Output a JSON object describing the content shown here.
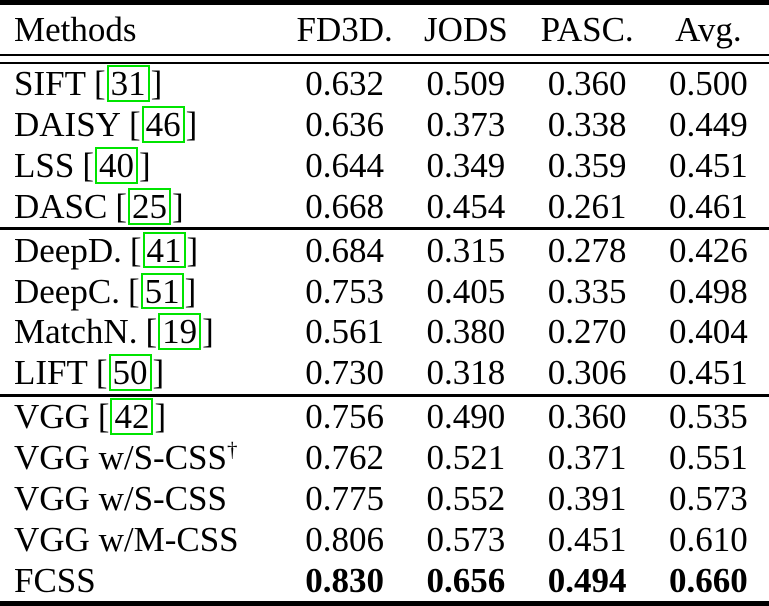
{
  "colors": {
    "background": "#ffffff",
    "text": "#000000",
    "rule": "#000000",
    "citation_box_border": "#00e400"
  },
  "table": {
    "cite_open": "[",
    "cite_close": "]",
    "columns": [
      "Methods",
      "FD3D.",
      "JODS",
      "PASC.",
      "Avg."
    ],
    "groups": [
      [
        {
          "method": "SIFT",
          "cite": "31",
          "values": [
            "0.632",
            "0.509",
            "0.360",
            "0.500"
          ]
        },
        {
          "method": "DAISY",
          "cite": "46",
          "values": [
            "0.636",
            "0.373",
            "0.338",
            "0.449"
          ]
        },
        {
          "method": "LSS",
          "cite": "40",
          "values": [
            "0.644",
            "0.349",
            "0.359",
            "0.451"
          ]
        },
        {
          "method": "DASC",
          "cite": "25",
          "values": [
            "0.668",
            "0.454",
            "0.261",
            "0.461"
          ]
        }
      ],
      [
        {
          "method": "DeepD.",
          "cite": "41",
          "values": [
            "0.684",
            "0.315",
            "0.278",
            "0.426"
          ]
        },
        {
          "method": "DeepC.",
          "cite": "51",
          "values": [
            "0.753",
            "0.405",
            "0.335",
            "0.498"
          ]
        },
        {
          "method": "MatchN.",
          "cite": "19",
          "values": [
            "0.561",
            "0.380",
            "0.270",
            "0.404"
          ]
        },
        {
          "method": "LIFT",
          "cite": "50",
          "values": [
            "0.730",
            "0.318",
            "0.306",
            "0.451"
          ]
        }
      ],
      [
        {
          "method": "VGG",
          "cite": "42",
          "values": [
            "0.756",
            "0.490",
            "0.360",
            "0.535"
          ]
        },
        {
          "method": "VGG w/S-CSS",
          "sup": "†",
          "values": [
            "0.762",
            "0.521",
            "0.371",
            "0.551"
          ]
        },
        {
          "method": "VGG w/S-CSS",
          "values": [
            "0.775",
            "0.552",
            "0.391",
            "0.573"
          ]
        },
        {
          "method": "VGG w/M-CSS",
          "values": [
            "0.806",
            "0.573",
            "0.451",
            "0.610"
          ]
        },
        {
          "method": "FCSS",
          "bold_values": true,
          "values": [
            "0.830",
            "0.656",
            "0.494",
            "0.660"
          ]
        }
      ]
    ]
  }
}
